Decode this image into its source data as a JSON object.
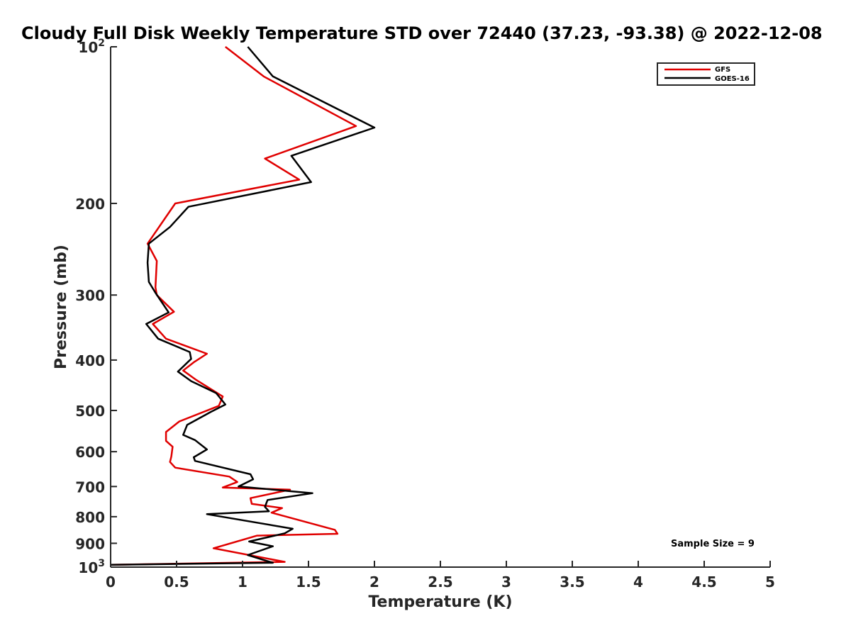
{
  "chart_data": {
    "type": "line",
    "title": "Cloudy Full Disk Weekly Temperature STD over 72440 (37.23, -93.38) @ 2022-12-08",
    "xlabel": "Temperature (K)",
    "ylabel": "Pressure (mb)",
    "xlim": [
      0,
      5
    ],
    "ylim": [
      100,
      1000
    ],
    "y_scale": "log",
    "y_reversed": true,
    "grid": false,
    "legend_position": "top-right",
    "x_ticks": [
      {
        "value": 0,
        "label": "0"
      },
      {
        "value": 0.5,
        "label": "0.5"
      },
      {
        "value": 1,
        "label": "1"
      },
      {
        "value": 1.5,
        "label": "1.5"
      },
      {
        "value": 2,
        "label": "2"
      },
      {
        "value": 2.5,
        "label": "2.5"
      },
      {
        "value": 3,
        "label": "3"
      },
      {
        "value": 3.5,
        "label": "3.5"
      },
      {
        "value": 4,
        "label": "4"
      },
      {
        "value": 4.5,
        "label": "4.5"
      },
      {
        "value": 5,
        "label": "5"
      }
    ],
    "y_ticks": [
      {
        "value": 100,
        "base": "10",
        "exp": "2"
      },
      {
        "value": 200,
        "label": "200"
      },
      {
        "value": 300,
        "label": "300"
      },
      {
        "value": 400,
        "label": "400"
      },
      {
        "value": 500,
        "label": "500"
      },
      {
        "value": 600,
        "label": "600"
      },
      {
        "value": 700,
        "label": "700"
      },
      {
        "value": 800,
        "label": "800"
      },
      {
        "value": 900,
        "label": "900"
      },
      {
        "value": 1000,
        "base": "10",
        "exp": "3"
      }
    ],
    "annotation": "Sample Size = 9",
    "series": [
      {
        "name": "GFS",
        "color": "#e00000",
        "points": [
          [
            0.87,
            100
          ],
          [
            1.16,
            114
          ],
          [
            1.86,
            142
          ],
          [
            1.17,
            164
          ],
          [
            1.43,
            180
          ],
          [
            0.49,
            200
          ],
          [
            0.28,
            239
          ],
          [
            0.35,
            258
          ],
          [
            0.34,
            290
          ],
          [
            0.35,
            300
          ],
          [
            0.48,
            323
          ],
          [
            0.32,
            341
          ],
          [
            0.42,
            364
          ],
          [
            0.73,
            389
          ],
          [
            0.63,
            404
          ],
          [
            0.55,
            419
          ],
          [
            0.65,
            437
          ],
          [
            0.85,
            470
          ],
          [
            0.82,
            490
          ],
          [
            0.52,
            525
          ],
          [
            0.42,
            550
          ],
          [
            0.42,
            572
          ],
          [
            0.47,
            587
          ],
          [
            0.46,
            613
          ],
          [
            0.45,
            628
          ],
          [
            0.49,
            644
          ],
          [
            0.9,
            670
          ],
          [
            0.96,
            686
          ],
          [
            0.85,
            703
          ],
          [
            1.36,
            710
          ],
          [
            1.06,
            737
          ],
          [
            1.07,
            756
          ],
          [
            1.3,
            770
          ],
          [
            1.22,
            786
          ],
          [
            1.7,
            848
          ],
          [
            1.72,
            863
          ],
          [
            1.11,
            870
          ],
          [
            0.78,
            920
          ],
          [
            1.32,
            977
          ],
          [
            0.0,
            990
          ]
        ]
      },
      {
        "name": "GOES-16",
        "color": "#000000",
        "points": [
          [
            1.04,
            100
          ],
          [
            1.23,
            114
          ],
          [
            2.0,
            143
          ],
          [
            1.37,
            162
          ],
          [
            1.52,
            182
          ],
          [
            0.59,
            203
          ],
          [
            0.45,
            222
          ],
          [
            0.29,
            239
          ],
          [
            0.28,
            260
          ],
          [
            0.29,
            283
          ],
          [
            0.34,
            297
          ],
          [
            0.44,
            324
          ],
          [
            0.27,
            341
          ],
          [
            0.36,
            364
          ],
          [
            0.6,
            386
          ],
          [
            0.61,
            398
          ],
          [
            0.51,
            421
          ],
          [
            0.61,
            439
          ],
          [
            0.8,
            463
          ],
          [
            0.87,
            487
          ],
          [
            0.76,
            503
          ],
          [
            0.58,
            533
          ],
          [
            0.55,
            557
          ],
          [
            0.64,
            570
          ],
          [
            0.73,
            594
          ],
          [
            0.63,
            615
          ],
          [
            0.64,
            625
          ],
          [
            1.06,
            663
          ],
          [
            1.08,
            678
          ],
          [
            0.97,
            700
          ],
          [
            1.53,
            721
          ],
          [
            1.19,
            743
          ],
          [
            1.17,
            766
          ],
          [
            1.2,
            781
          ],
          [
            0.73,
            791
          ],
          [
            1.38,
            844
          ],
          [
            1.32,
            861
          ],
          [
            1.05,
            893
          ],
          [
            1.23,
            912
          ],
          [
            1.04,
            948
          ],
          [
            1.23,
            981
          ],
          [
            0.0,
            990
          ]
        ]
      }
    ]
  }
}
